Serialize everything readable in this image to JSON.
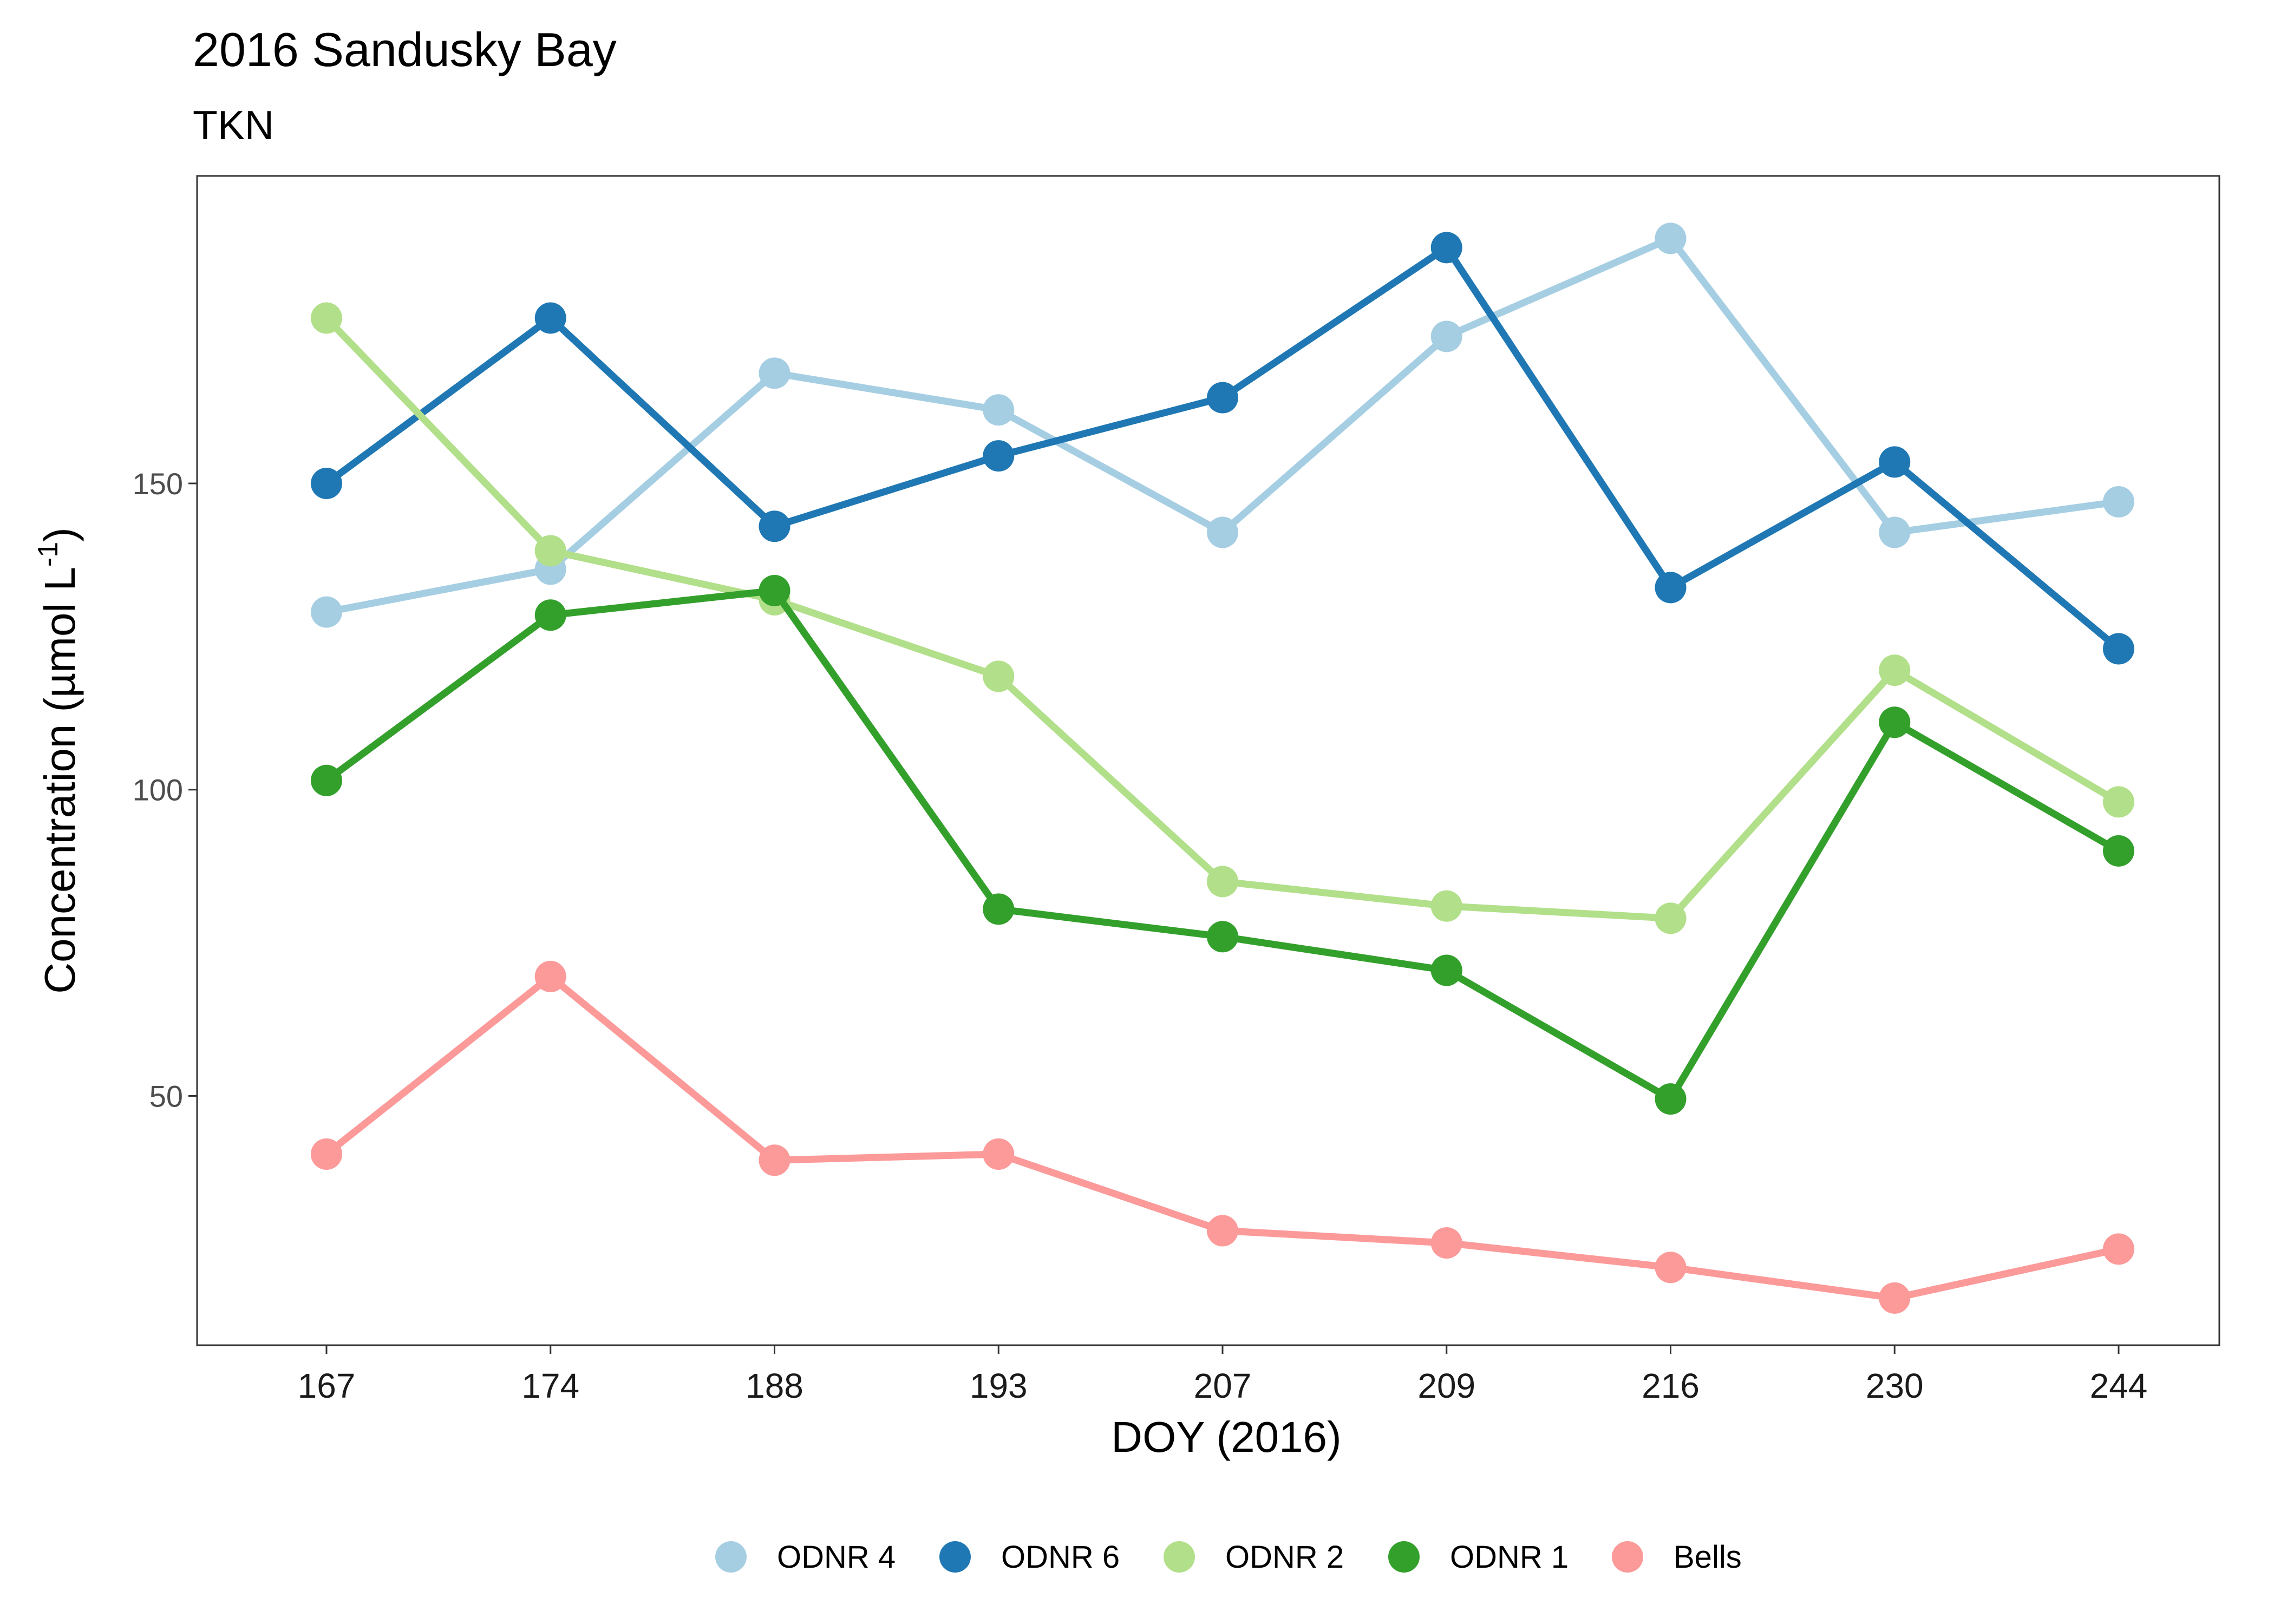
{
  "chart_data": {
    "type": "line",
    "title": "2016 Sandusky Bay",
    "subtitle": "TKN",
    "xlabel": "DOY (2016)",
    "ylabel_main": "Concentration (µmol L",
    "ylabel_sup": "-1",
    "ylabel_close": ")",
    "categories": [
      "167",
      "174",
      "188",
      "193",
      "207",
      "209",
      "216",
      "230",
      "244"
    ],
    "y_ticks": [
      50,
      100,
      150
    ],
    "ylim": [
      9.3,
      200.2
    ],
    "grid": false,
    "legend_position": "bottom",
    "series": [
      {
        "name": "ODNR 4",
        "color": "#a6cee3",
        "values": [
          129,
          136,
          168,
          162,
          142,
          174,
          190,
          142,
          147
        ]
      },
      {
        "name": "ODNR 6",
        "color": "#1f78b4",
        "values": [
          150,
          177,
          143,
          154.5,
          164,
          188.5,
          133,
          153.5,
          123
        ]
      },
      {
        "name": "ODNR 2",
        "color": "#b2df8a",
        "values": [
          177,
          139,
          131,
          118.5,
          85,
          81,
          79,
          119.5,
          98
        ]
      },
      {
        "name": "ODNR 1",
        "color": "#33a02c",
        "values": [
          101.5,
          128.5,
          132.5,
          80.5,
          76,
          70.5,
          49.5,
          111,
          90
        ]
      },
      {
        "name": "Bells",
        "color": "#fb9a99",
        "values": [
          40.5,
          69.5,
          39.5,
          40.5,
          28,
          26,
          22,
          17,
          25
        ]
      }
    ]
  }
}
